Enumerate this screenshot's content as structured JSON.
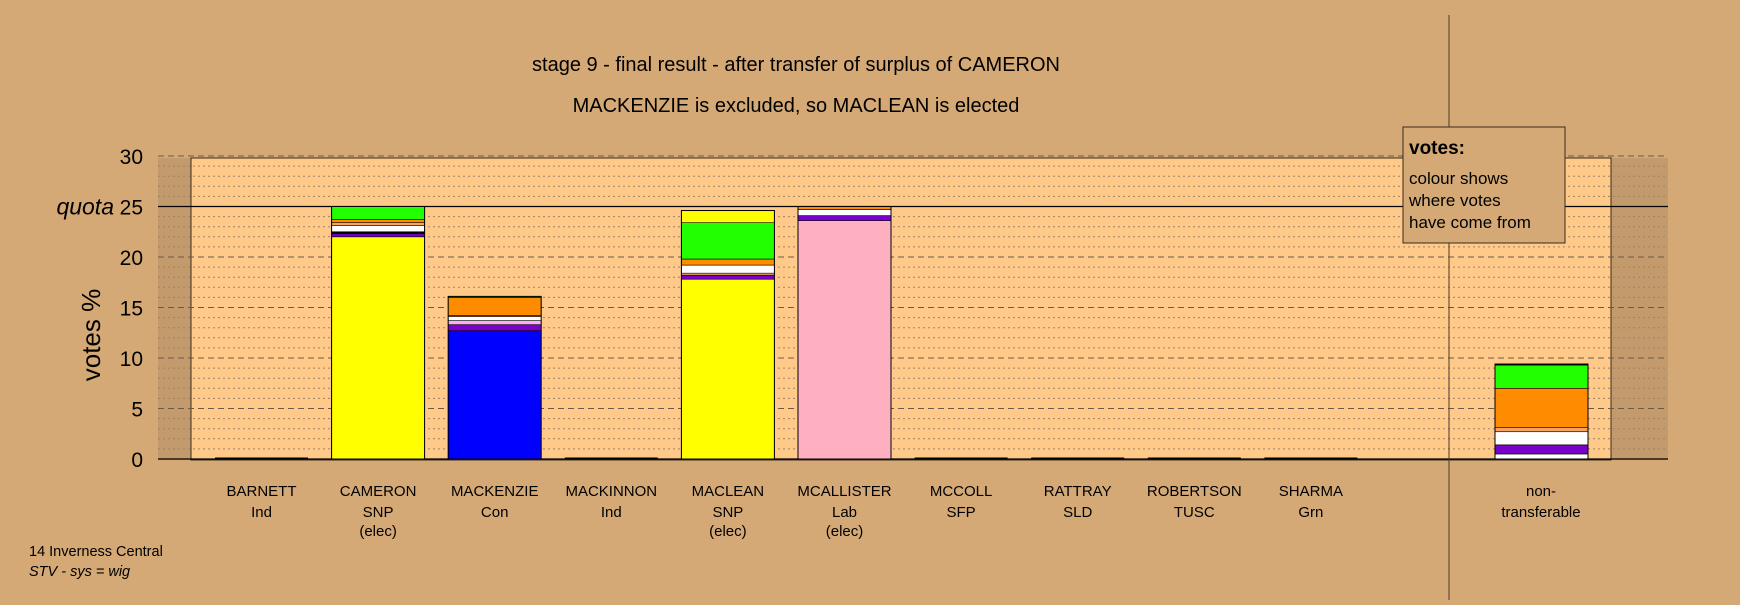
{
  "chart_data": {
    "type": "bar",
    "stacked": true,
    "title": "stage 9 - final result - after transfer of surplus of CAMERON",
    "subtitle": "MACKENZIE is excluded, so MACLEAN is elected",
    "ylabel": "votes %",
    "ylim": [
      0,
      30
    ],
    "yticks": [
      "0",
      "5",
      "10",
      "15",
      "20",
      "25",
      "30"
    ],
    "quota": {
      "value": 25,
      "label": "quota"
    },
    "grid": "dashed major, dotted minor",
    "categories": [
      {
        "name": "BARNETT",
        "party": "Ind",
        "status": ""
      },
      {
        "name": "CAMERON",
        "party": "SNP",
        "status": "(elec)"
      },
      {
        "name": "MACKENZIE",
        "party": "Con",
        "status": ""
      },
      {
        "name": "MACKINNON",
        "party": "Ind",
        "status": ""
      },
      {
        "name": "MACLEAN",
        "party": "SNP",
        "status": "(elec)"
      },
      {
        "name": "MCALLISTER",
        "party": "Lab",
        "status": "(elec)"
      },
      {
        "name": "MCCOLL",
        "party": "SFP",
        "status": ""
      },
      {
        "name": "RATTRAY",
        "party": "SLD",
        "status": ""
      },
      {
        "name": "ROBERTSON",
        "party": "TUSC",
        "status": ""
      },
      {
        "name": "SHARMA",
        "party": "Grn",
        "status": ""
      }
    ],
    "nontransferable": {
      "label1": "non-",
      "label2": "transferable"
    },
    "bars": [
      {
        "candidate": "BARNETT",
        "segments": []
      },
      {
        "candidate": "CAMERON",
        "segments": [
          {
            "color": "#ffff00",
            "value": 22.0
          },
          {
            "color": "#7a00cc",
            "value": 0.3
          },
          {
            "color": "#000000",
            "value": 0.2
          },
          {
            "color": "#ffffff",
            "value": 0.6
          },
          {
            "color": "#f4a460",
            "value": 0.3
          },
          {
            "color": "#ff8c00",
            "value": 0.3
          },
          {
            "color": "#22ff00",
            "value": 1.3
          }
        ]
      },
      {
        "candidate": "MACKENZIE",
        "segments": [
          {
            "color": "#0000ff",
            "value": 12.7
          },
          {
            "color": "#7a00cc",
            "value": 0.6
          },
          {
            "color": "#ffaaff",
            "value": 0.4
          },
          {
            "color": "#ffffff",
            "value": 0.4
          },
          {
            "color": "#f4a460",
            "value": 0.1
          },
          {
            "color": "#ff8c00",
            "value": 1.8
          },
          {
            "color": "#22ff00",
            "value": 0.1
          }
        ]
      },
      {
        "candidate": "MACKINNON",
        "segments": []
      },
      {
        "candidate": "MACLEAN",
        "segments": [
          {
            "color": "#ffff00",
            "value": 17.8
          },
          {
            "color": "#7a00cc",
            "value": 0.4
          },
          {
            "color": "#f4a460",
            "value": 0.2
          },
          {
            "color": "#ffffff",
            "value": 0.8
          },
          {
            "color": "#ff8c00",
            "value": 0.6
          },
          {
            "color": "#22ff00",
            "value": 3.6
          },
          {
            "color": "#ffff00",
            "value": 1.2
          }
        ]
      },
      {
        "candidate": "MCALLISTER",
        "segments": [
          {
            "color": "#ffb0c0",
            "value": 23.6
          },
          {
            "color": "#7a00cc",
            "value": 0.5
          },
          {
            "color": "#ffffff",
            "value": 0.6
          },
          {
            "color": "#ff8c00",
            "value": 0.3
          }
        ]
      },
      {
        "candidate": "MCCOLL",
        "segments": []
      },
      {
        "candidate": "RATTRAY",
        "segments": []
      },
      {
        "candidate": "ROBERTSON",
        "segments": []
      },
      {
        "candidate": "SHARMA",
        "segments": []
      },
      {
        "candidate": "non-transferable",
        "segments": [
          {
            "color": "#ffffff",
            "value": 0.5
          },
          {
            "color": "#7a00cc",
            "value": 0.9
          },
          {
            "color": "#ffffff",
            "value": 1.3
          },
          {
            "color": "#f4a460",
            "value": 0.4
          },
          {
            "color": "#ff8c00",
            "value": 3.9
          },
          {
            "color": "#22ff00",
            "value": 2.3
          },
          {
            "color": "#000000",
            "value": 0.1
          }
        ]
      }
    ],
    "legend": {
      "title": "votes:",
      "lines": [
        "colour shows",
        "where votes",
        "have come from"
      ]
    }
  },
  "footer": {
    "ward": "14 Inverness Central",
    "system": "STV - sys = wig"
  },
  "colors": {
    "background": "#d4a976",
    "plot_area": "#ffc98a",
    "shade": "#bf976a"
  }
}
